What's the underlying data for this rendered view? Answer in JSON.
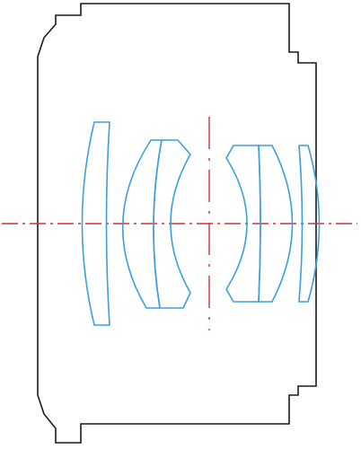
{
  "diagram": {
    "colors": {
      "background": "#ffffff",
      "lens_barrel": "#1a1a1a",
      "lens_elements": "#3aa0d8",
      "axes": "#d03030"
    }
  }
}
